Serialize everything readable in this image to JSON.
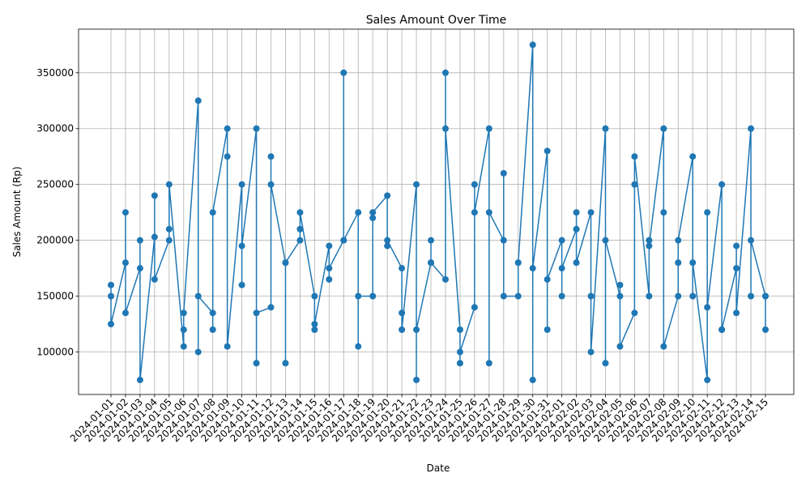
{
  "chart_data": {
    "type": "line",
    "title": "Sales Amount Over Time",
    "xlabel": "Date",
    "ylabel": "Sales Amount (Rp)",
    "ylim": [
      62000,
      389000
    ],
    "yticks": [
      100000,
      150000,
      200000,
      250000,
      300000,
      350000
    ],
    "grid": true,
    "color": "#1f77b4",
    "categories": [
      "2024-01-01",
      "2024-01-02",
      "2024-01-03",
      "2024-01-04",
      "2024-01-05",
      "2024-01-06",
      "2024-01-07",
      "2024-01-08",
      "2024-01-09",
      "2024-01-10",
      "2024-01-11",
      "2024-01-12",
      "2024-01-13",
      "2024-01-14",
      "2024-01-15",
      "2024-01-16",
      "2024-01-17",
      "2024-01-18",
      "2024-01-19",
      "2024-01-20",
      "2024-01-21",
      "2024-01-22",
      "2024-01-23",
      "2024-01-24",
      "2024-01-25",
      "2024-01-26",
      "2024-01-27",
      "2024-01-28",
      "2024-01-29",
      "2024-01-30",
      "2024-01-31",
      "2024-02-01",
      "2024-02-02",
      "2024-02-03",
      "2024-02-04",
      "2024-02-05",
      "2024-02-06",
      "2024-02-07",
      "2024-02-08",
      "2024-02-09",
      "2024-02-10",
      "2024-02-11",
      "2024-02-12",
      "2024-02-13",
      "2024-02-14",
      "2024-02-15"
    ],
    "points": [
      [
        "2024-01-01",
        160000
      ],
      [
        "2024-01-01",
        150000
      ],
      [
        "2024-01-01",
        125000
      ],
      [
        "2024-01-02",
        180000
      ],
      [
        "2024-01-02",
        225000
      ],
      [
        "2024-01-02",
        135000
      ],
      [
        "2024-01-03",
        175000
      ],
      [
        "2024-01-03",
        200000
      ],
      [
        "2024-01-03",
        75000
      ],
      [
        "2024-01-04",
        203000
      ],
      [
        "2024-01-04",
        240000
      ],
      [
        "2024-01-04",
        165000
      ],
      [
        "2024-01-05",
        200000
      ],
      [
        "2024-01-05",
        210000
      ],
      [
        "2024-01-05",
        250000
      ],
      [
        "2024-01-06",
        105000
      ],
      [
        "2024-01-06",
        120000
      ],
      [
        "2024-01-06",
        135000
      ],
      [
        "2024-01-07",
        325000
      ],
      [
        "2024-01-07",
        100000
      ],
      [
        "2024-01-07",
        150000
      ],
      [
        "2024-01-08",
        135000
      ],
      [
        "2024-01-08",
        120000
      ],
      [
        "2024-01-08",
        225000
      ],
      [
        "2024-01-09",
        300000
      ],
      [
        "2024-01-09",
        275000
      ],
      [
        "2024-01-09",
        105000
      ],
      [
        "2024-01-10",
        250000
      ],
      [
        "2024-01-10",
        160000
      ],
      [
        "2024-01-10",
        195000
      ],
      [
        "2024-01-11",
        300000
      ],
      [
        "2024-01-11",
        90000
      ],
      [
        "2024-01-11",
        135000
      ],
      [
        "2024-01-12",
        140000
      ],
      [
        "2024-01-12",
        275000
      ],
      [
        "2024-01-12",
        250000
      ],
      [
        "2024-01-13",
        180000
      ],
      [
        "2024-01-13",
        90000
      ],
      [
        "2024-01-13",
        180000
      ],
      [
        "2024-01-14",
        200000
      ],
      [
        "2024-01-14",
        210000
      ],
      [
        "2024-01-14",
        225000
      ],
      [
        "2024-01-15",
        150000
      ],
      [
        "2024-01-15",
        120000
      ],
      [
        "2024-01-15",
        125000
      ],
      [
        "2024-01-16",
        195000
      ],
      [
        "2024-01-16",
        165000
      ],
      [
        "2024-01-16",
        175000
      ],
      [
        "2024-01-17",
        200000
      ],
      [
        "2024-01-17",
        350000
      ],
      [
        "2024-01-17",
        200000
      ],
      [
        "2024-01-18",
        225000
      ],
      [
        "2024-01-18",
        105000
      ],
      [
        "2024-01-18",
        150000
      ],
      [
        "2024-01-19",
        150000
      ],
      [
        "2024-01-19",
        220000
      ],
      [
        "2024-01-19",
        225000
      ],
      [
        "2024-01-20",
        240000
      ],
      [
        "2024-01-20",
        195000
      ],
      [
        "2024-01-20",
        200000
      ],
      [
        "2024-01-21",
        175000
      ],
      [
        "2024-01-21",
        135000
      ],
      [
        "2024-01-21",
        120000
      ],
      [
        "2024-01-22",
        250000
      ],
      [
        "2024-01-22",
        75000
      ],
      [
        "2024-01-22",
        120000
      ],
      [
        "2024-01-23",
        180000
      ],
      [
        "2024-01-23",
        200000
      ],
      [
        "2024-01-23",
        180000
      ],
      [
        "2024-01-24",
        165000
      ],
      [
        "2024-01-24",
        350000
      ],
      [
        "2024-01-24",
        300000
      ],
      [
        "2024-01-25",
        120000
      ],
      [
        "2024-01-25",
        90000
      ],
      [
        "2024-01-25",
        100000
      ],
      [
        "2024-01-26",
        140000
      ],
      [
        "2024-01-26",
        250000
      ],
      [
        "2024-01-26",
        225000
      ],
      [
        "2024-01-27",
        300000
      ],
      [
        "2024-01-27",
        90000
      ],
      [
        "2024-01-27",
        225000
      ],
      [
        "2024-01-28",
        200000
      ],
      [
        "2024-01-28",
        260000
      ],
      [
        "2024-01-28",
        150000
      ],
      [
        "2024-01-29",
        150000
      ],
      [
        "2024-01-29",
        180000
      ],
      [
        "2024-01-29",
        180000
      ],
      [
        "2024-01-30",
        375000
      ],
      [
        "2024-01-30",
        75000
      ],
      [
        "2024-01-30",
        175000
      ],
      [
        "2024-01-31",
        280000
      ],
      [
        "2024-01-31",
        120000
      ],
      [
        "2024-01-31",
        165000
      ],
      [
        "2024-02-01",
        200000
      ],
      [
        "2024-02-01",
        150000
      ],
      [
        "2024-02-01",
        175000
      ],
      [
        "2024-02-02",
        210000
      ],
      [
        "2024-02-02",
        225000
      ],
      [
        "2024-02-02",
        180000
      ],
      [
        "2024-02-03",
        225000
      ],
      [
        "2024-02-03",
        150000
      ],
      [
        "2024-02-03",
        100000
      ],
      [
        "2024-02-04",
        300000
      ],
      [
        "2024-02-04",
        90000
      ],
      [
        "2024-02-04",
        200000
      ],
      [
        "2024-02-05",
        150000
      ],
      [
        "2024-02-05",
        160000
      ],
      [
        "2024-02-05",
        105000
      ],
      [
        "2024-02-06",
        135000
      ],
      [
        "2024-02-06",
        250000
      ],
      [
        "2024-02-06",
        275000
      ],
      [
        "2024-02-07",
        150000
      ],
      [
        "2024-02-07",
        200000
      ],
      [
        "2024-02-07",
        195000
      ],
      [
        "2024-02-08",
        300000
      ],
      [
        "2024-02-08",
        225000
      ],
      [
        "2024-02-08",
        105000
      ],
      [
        "2024-02-09",
        150000
      ],
      [
        "2024-02-09",
        180000
      ],
      [
        "2024-02-09",
        200000
      ],
      [
        "2024-02-10",
        275000
      ],
      [
        "2024-02-10",
        150000
      ],
      [
        "2024-02-10",
        180000
      ],
      [
        "2024-02-11",
        75000
      ],
      [
        "2024-02-11",
        225000
      ],
      [
        "2024-02-11",
        140000
      ],
      [
        "2024-02-12",
        250000
      ],
      [
        "2024-02-12",
        120000
      ],
      [
        "2024-02-12",
        120000
      ],
      [
        "2024-02-13",
        175000
      ],
      [
        "2024-02-13",
        195000
      ],
      [
        "2024-02-13",
        135000
      ],
      [
        "2024-02-14",
        300000
      ],
      [
        "2024-02-14",
        150000
      ],
      [
        "2024-02-14",
        200000
      ],
      [
        "2024-02-15",
        150000
      ],
      [
        "2024-02-15",
        120000
      ],
      [
        "2024-02-15",
        150000
      ]
    ]
  }
}
